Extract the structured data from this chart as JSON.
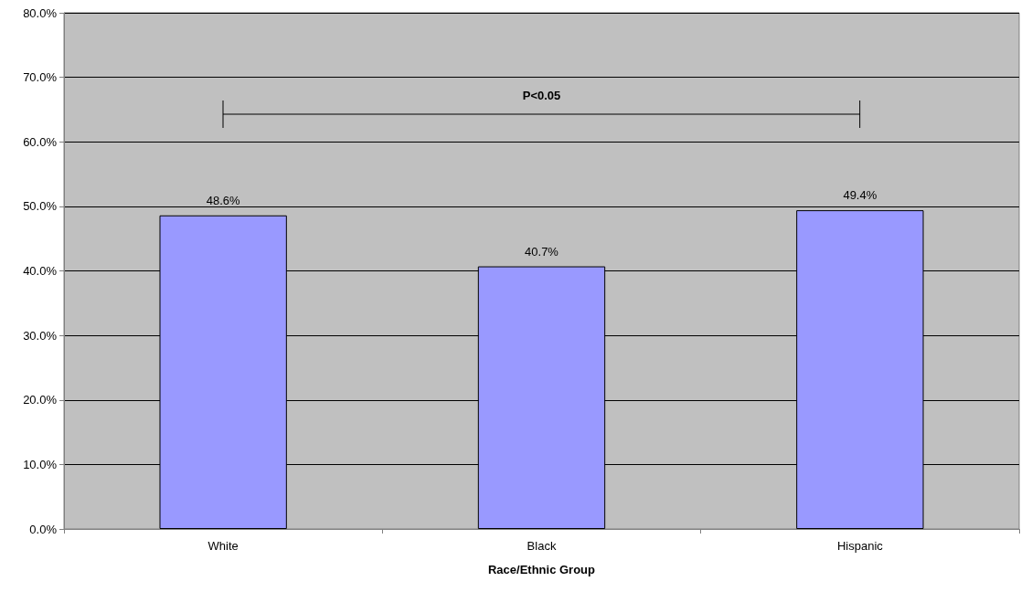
{
  "chart_data": {
    "type": "bar",
    "xlabel": "Race/Ethnic Group",
    "categories": [
      "White",
      "Black",
      "Hispanic"
    ],
    "values": [
      48.6,
      40.7,
      49.4
    ],
    "color": "#9999ff",
    "value_labels": [
      "48.6%",
      "40.7%",
      "49.4%"
    ],
    "ylim": [
      0,
      80
    ],
    "yticks": [
      {
        "value": 0,
        "label": "0.0%"
      },
      {
        "value": 10,
        "label": "10.0%"
      },
      {
        "value": 20,
        "label": "20.0%"
      },
      {
        "value": 30,
        "label": "30.0%"
      },
      {
        "value": 40,
        "label": "40.0%"
      },
      {
        "value": 50,
        "label": "50.0%"
      },
      {
        "value": 60,
        "label": "60.0%"
      },
      {
        "value": 70,
        "label": "70.0%"
      },
      {
        "value": 80,
        "label": "80.0%"
      }
    ],
    "grid": "y",
    "annotations": [
      "P<0.05"
    ]
  }
}
